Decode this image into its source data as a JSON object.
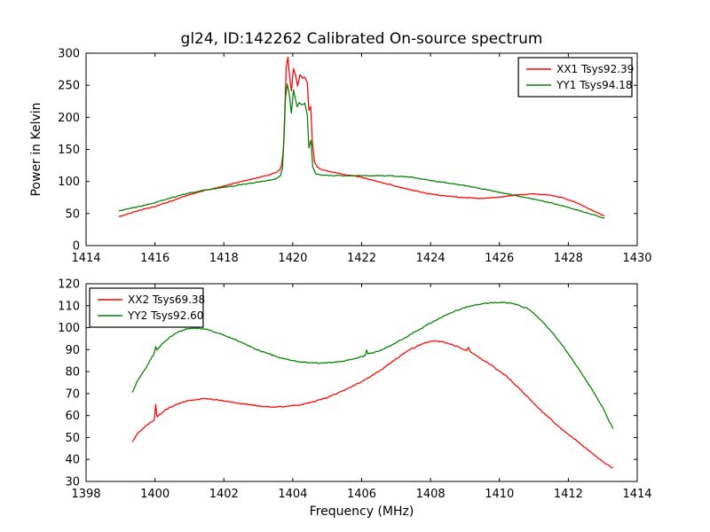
{
  "figure": {
    "title": "gl24, ID:142262 Calibrated On-source spectrum",
    "xlabel": "Frequency (MHz)",
    "ylabel": "Power in Kelvin",
    "background": "#ffffff",
    "axis_color": "#000000"
  },
  "chart_data": [
    {
      "type": "line",
      "title": "gl24, ID:142262 Calibrated On-source spectrum",
      "xlabel": "",
      "ylabel": "Power in Kelvin",
      "xlim": [
        1414,
        1430
      ],
      "ylim": [
        0,
        300
      ],
      "xticks": [
        1414,
        1416,
        1418,
        1420,
        1422,
        1424,
        1426,
        1428,
        1430
      ],
      "yticks": [
        0,
        50,
        100,
        150,
        200,
        250,
        300
      ],
      "grid": false,
      "legend": {
        "loc": "upper right",
        "entries": [
          "XX1 Tsys92.39",
          "YY1 Tsys94.18"
        ]
      },
      "series": [
        {
          "name": "XX1 Tsys92.39",
          "color": "#ff0000",
          "points": [
            [
              1414.95,
              45
            ],
            [
              1415.3,
              51
            ],
            [
              1415.7,
              57
            ],
            [
              1416.0,
              61
            ],
            [
              1416.5,
              70
            ],
            [
              1417.0,
              79.5
            ],
            [
              1417.5,
              86.5
            ],
            [
              1418.0,
              93
            ],
            [
              1418.5,
              100
            ],
            [
              1419.0,
              106
            ],
            [
              1419.3,
              110
            ],
            [
              1419.5,
              113.5
            ],
            [
              1419.62,
              118
            ],
            [
              1419.68,
              126
            ],
            [
              1419.73,
              152
            ],
            [
              1419.77,
              212
            ],
            [
              1419.81,
              278
            ],
            [
              1419.86,
              294
            ],
            [
              1419.91,
              263
            ],
            [
              1419.96,
              241
            ],
            [
              1420.02,
              276
            ],
            [
              1420.08,
              267
            ],
            [
              1420.14,
              249
            ],
            [
              1420.21,
              266
            ],
            [
              1420.28,
              261
            ],
            [
              1420.35,
              263
            ],
            [
              1420.42,
              254
            ],
            [
              1420.47,
              211
            ],
            [
              1420.52,
              217
            ],
            [
              1420.57,
              161
            ],
            [
              1420.63,
              131
            ],
            [
              1420.72,
              122
            ],
            [
              1420.85,
              118.5
            ],
            [
              1421.0,
              116.5
            ],
            [
              1421.5,
              111
            ],
            [
              1422.0,
              106.5
            ],
            [
              1422.5,
              99.5
            ],
            [
              1423.0,
              92.5
            ],
            [
              1423.5,
              86
            ],
            [
              1424.0,
              80.5
            ],
            [
              1424.5,
              77
            ],
            [
              1425.0,
              74.5
            ],
            [
              1425.5,
              73.5
            ],
            [
              1426.0,
              75.5
            ],
            [
              1426.5,
              79
            ],
            [
              1427.0,
              80.5
            ],
            [
              1427.4,
              79
            ],
            [
              1427.8,
              75
            ],
            [
              1428.2,
              68
            ],
            [
              1428.6,
              57.5
            ],
            [
              1429.05,
              46
            ]
          ]
        },
        {
          "name": "YY1 Tsys94.18",
          "color": "#008000",
          "points": [
            [
              1414.95,
              54
            ],
            [
              1415.3,
              58.5
            ],
            [
              1415.7,
              63
            ],
            [
              1416.0,
              67
            ],
            [
              1416.5,
              75
            ],
            [
              1417.0,
              82
            ],
            [
              1417.5,
              87
            ],
            [
              1418.0,
              91
            ],
            [
              1418.5,
              95
            ],
            [
              1419.0,
              99
            ],
            [
              1419.5,
              104
            ],
            [
              1419.64,
              109
            ],
            [
              1419.7,
              120
            ],
            [
              1419.75,
              172
            ],
            [
              1419.79,
              231
            ],
            [
              1419.84,
              252
            ],
            [
              1419.9,
              236
            ],
            [
              1419.96,
              206
            ],
            [
              1420.02,
              243
            ],
            [
              1420.07,
              231
            ],
            [
              1420.13,
              216
            ],
            [
              1420.19,
              223
            ],
            [
              1420.27,
              219
            ],
            [
              1420.35,
              222
            ],
            [
              1420.42,
              204
            ],
            [
              1420.47,
              153
            ],
            [
              1420.53,
              164
            ],
            [
              1420.58,
              123
            ],
            [
              1420.66,
              112
            ],
            [
              1420.8,
              110
            ],
            [
              1421.0,
              109.5
            ],
            [
              1421.5,
              109.2
            ],
            [
              1422.0,
              109
            ],
            [
              1422.5,
              109
            ],
            [
              1423.0,
              108.5
            ],
            [
              1423.5,
              106.5
            ],
            [
              1424.0,
              101.5
            ],
            [
              1424.5,
              97.5
            ],
            [
              1425.0,
              93.5
            ],
            [
              1425.5,
              88.5
            ],
            [
              1426.0,
              83
            ],
            [
              1426.5,
              78
            ],
            [
              1427.0,
              72.5
            ],
            [
              1427.5,
              66.5
            ],
            [
              1428.0,
              59.5
            ],
            [
              1428.5,
              51.5
            ],
            [
              1429.05,
              43
            ]
          ]
        }
      ]
    },
    {
      "type": "line",
      "title": "",
      "xlabel": "Frequency (MHz)",
      "ylabel": "",
      "xlim": [
        1398,
        1414
      ],
      "ylim": [
        30,
        120
      ],
      "xticks": [
        1398,
        1400,
        1402,
        1404,
        1406,
        1408,
        1410,
        1412,
        1414
      ],
      "yticks": [
        30,
        40,
        50,
        60,
        70,
        80,
        90,
        100,
        110,
        120
      ],
      "grid": false,
      "legend": {
        "loc": "upper left",
        "entries": [
          "XX2 Tsys69.38",
          "YY2 Tsys92.60"
        ]
      },
      "series": [
        {
          "name": "XX2 Tsys69.38",
          "color": "#ff0000",
          "points": [
            [
              1399.34,
              48
            ],
            [
              1399.5,
              52
            ],
            [
              1399.75,
              55.5
            ],
            [
              1399.98,
              58
            ],
            [
              1400.02,
              65
            ],
            [
              1400.06,
              59.5
            ],
            [
              1400.3,
              62.5
            ],
            [
              1400.6,
              65
            ],
            [
              1401.0,
              67
            ],
            [
              1401.4,
              67.7
            ],
            [
              1401.8,
              67.2
            ],
            [
              1402.2,
              66.2
            ],
            [
              1402.6,
              65.2
            ],
            [
              1403.0,
              64.4
            ],
            [
              1403.4,
              63.9
            ],
            [
              1403.8,
              64.1
            ],
            [
              1404.2,
              64.9
            ],
            [
              1404.6,
              66.2
            ],
            [
              1405.0,
              68.2
            ],
            [
              1405.4,
              70.8
            ],
            [
              1405.8,
              73.8
            ],
            [
              1406.2,
              77.2
            ],
            [
              1406.6,
              81.2
            ],
            [
              1407.0,
              85.8
            ],
            [
              1407.4,
              90
            ],
            [
              1407.8,
              93
            ],
            [
              1408.1,
              94
            ],
            [
              1408.4,
              93.4
            ],
            [
              1408.8,
              91.3
            ],
            [
              1409.05,
              89.5
            ],
            [
              1409.1,
              90.8
            ],
            [
              1409.15,
              89
            ],
            [
              1409.5,
              85.5
            ],
            [
              1409.8,
              82.5
            ],
            [
              1410.2,
              78
            ],
            [
              1410.6,
              72
            ],
            [
              1411.0,
              65.5
            ],
            [
              1411.4,
              59.5
            ],
            [
              1411.8,
              54
            ],
            [
              1412.2,
              49
            ],
            [
              1412.6,
              44
            ],
            [
              1413.0,
              39
            ],
            [
              1413.3,
              36
            ]
          ]
        },
        {
          "name": "YY2 Tsys92.60",
          "color": "#008000",
          "points": [
            [
              1399.34,
              70.5
            ],
            [
              1399.5,
              76
            ],
            [
              1399.75,
              82
            ],
            [
              1399.98,
              88.5
            ],
            [
              1400.02,
              91.5
            ],
            [
              1400.06,
              90
            ],
            [
              1400.3,
              94
            ],
            [
              1400.6,
              97.5
            ],
            [
              1400.9,
              99.4
            ],
            [
              1401.15,
              99.8
            ],
            [
              1401.5,
              99.2
            ],
            [
              1401.9,
              97.2
            ],
            [
              1402.3,
              94.8
            ],
            [
              1402.7,
              91.8
            ],
            [
              1403.1,
              89.2
            ],
            [
              1403.5,
              87
            ],
            [
              1403.9,
              85.2
            ],
            [
              1404.3,
              84.3
            ],
            [
              1404.7,
              83.9
            ],
            [
              1405.1,
              84.1
            ],
            [
              1405.5,
              84.9
            ],
            [
              1405.9,
              86.3
            ],
            [
              1406.1,
              87.3
            ],
            [
              1406.14,
              89.8
            ],
            [
              1406.18,
              88
            ],
            [
              1406.5,
              89.4
            ],
            [
              1406.9,
              92.3
            ],
            [
              1407.3,
              95.8
            ],
            [
              1407.7,
              99.4
            ],
            [
              1408.1,
              103
            ],
            [
              1408.5,
              106.2
            ],
            [
              1408.9,
              108.7
            ],
            [
              1409.3,
              110.3
            ],
            [
              1409.7,
              111.2
            ],
            [
              1410.1,
              111.5
            ],
            [
              1410.4,
              111
            ],
            [
              1410.8,
              108.8
            ],
            [
              1411.0,
              106.5
            ],
            [
              1411.2,
              103.5
            ],
            [
              1411.5,
              98.5
            ],
            [
              1411.8,
              92.5
            ],
            [
              1412.1,
              86
            ],
            [
              1412.4,
              79
            ],
            [
              1412.7,
              71.5
            ],
            [
              1413.0,
              63.5
            ],
            [
              1413.15,
              58.5
            ],
            [
              1413.3,
              54
            ]
          ]
        }
      ]
    }
  ]
}
